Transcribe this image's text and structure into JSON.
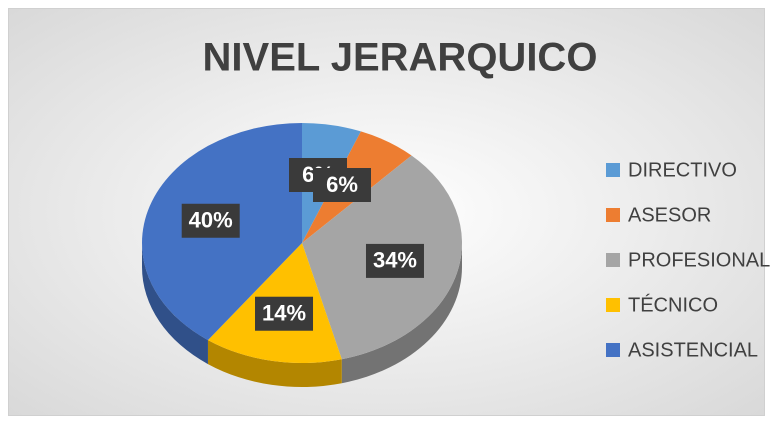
{
  "chart_data": {
    "type": "pie",
    "title": "NIVEL JERARQUICO",
    "categories": [
      "DIRECTIVO",
      "ASESOR",
      "PROFESIONAL",
      "TÉCNICO",
      "ASISTENCIAL"
    ],
    "values": [
      6,
      6,
      34,
      14,
      40
    ],
    "value_labels": [
      "6%",
      "6%",
      "34%",
      "14%",
      "40%"
    ],
    "colors": [
      "#5b9bd5",
      "#ed7d31",
      "#a5a5a5",
      "#ffc000",
      "#4472c4"
    ],
    "legend": "right"
  }
}
